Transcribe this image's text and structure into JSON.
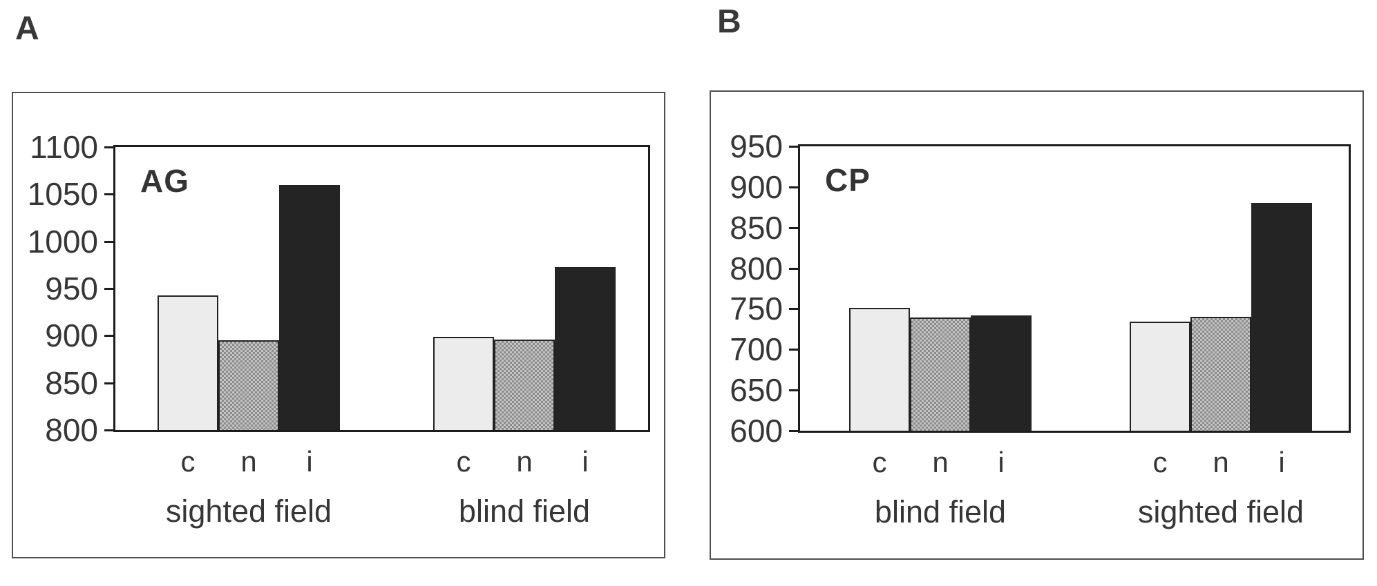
{
  "figure": {
    "panel_letters": [
      "A",
      "B"
    ]
  },
  "colors": {
    "text": "#2f2f2f",
    "outer_border": "#4f4f4f",
    "plot_border": "#1c1c1c",
    "bar_light_fill": "#ececec",
    "bar_halftone_light": "#c4c4c4",
    "bar_halftone_dark": "#8c8c8c",
    "bar_solid_fill": "#242424",
    "background": "#ffffff"
  },
  "chart_data": [
    {
      "type": "bar",
      "panel_label": "A",
      "title": "AG",
      "xlabel": "",
      "ylabel": "",
      "ylim": [
        800,
        1100
      ],
      "yticks": [
        1100,
        1050,
        1000,
        950,
        900,
        850,
        800
      ],
      "grid": false,
      "legend": "none",
      "categories": [
        "c",
        "n",
        "i"
      ],
      "bar_styles": [
        "light",
        "halftone",
        "solid"
      ],
      "groups": [
        {
          "label": "sighted field",
          "values": [
            943,
            895,
            1060
          ]
        },
        {
          "label": "blind field",
          "values": [
            899,
            896,
            973
          ]
        }
      ]
    },
    {
      "type": "bar",
      "panel_label": "B",
      "title": "CP",
      "xlabel": "",
      "ylabel": "",
      "ylim": [
        600,
        950
      ],
      "yticks": [
        950,
        900,
        850,
        800,
        750,
        700,
        650,
        600
      ],
      "grid": false,
      "legend": "none",
      "categories": [
        "c",
        "n",
        "i"
      ],
      "bar_styles": [
        "light",
        "halftone",
        "solid"
      ],
      "groups": [
        {
          "label": "blind field",
          "values": [
            751,
            739,
            742
          ]
        },
        {
          "label": "sighted field",
          "values": [
            734,
            740,
            880
          ]
        }
      ]
    }
  ]
}
